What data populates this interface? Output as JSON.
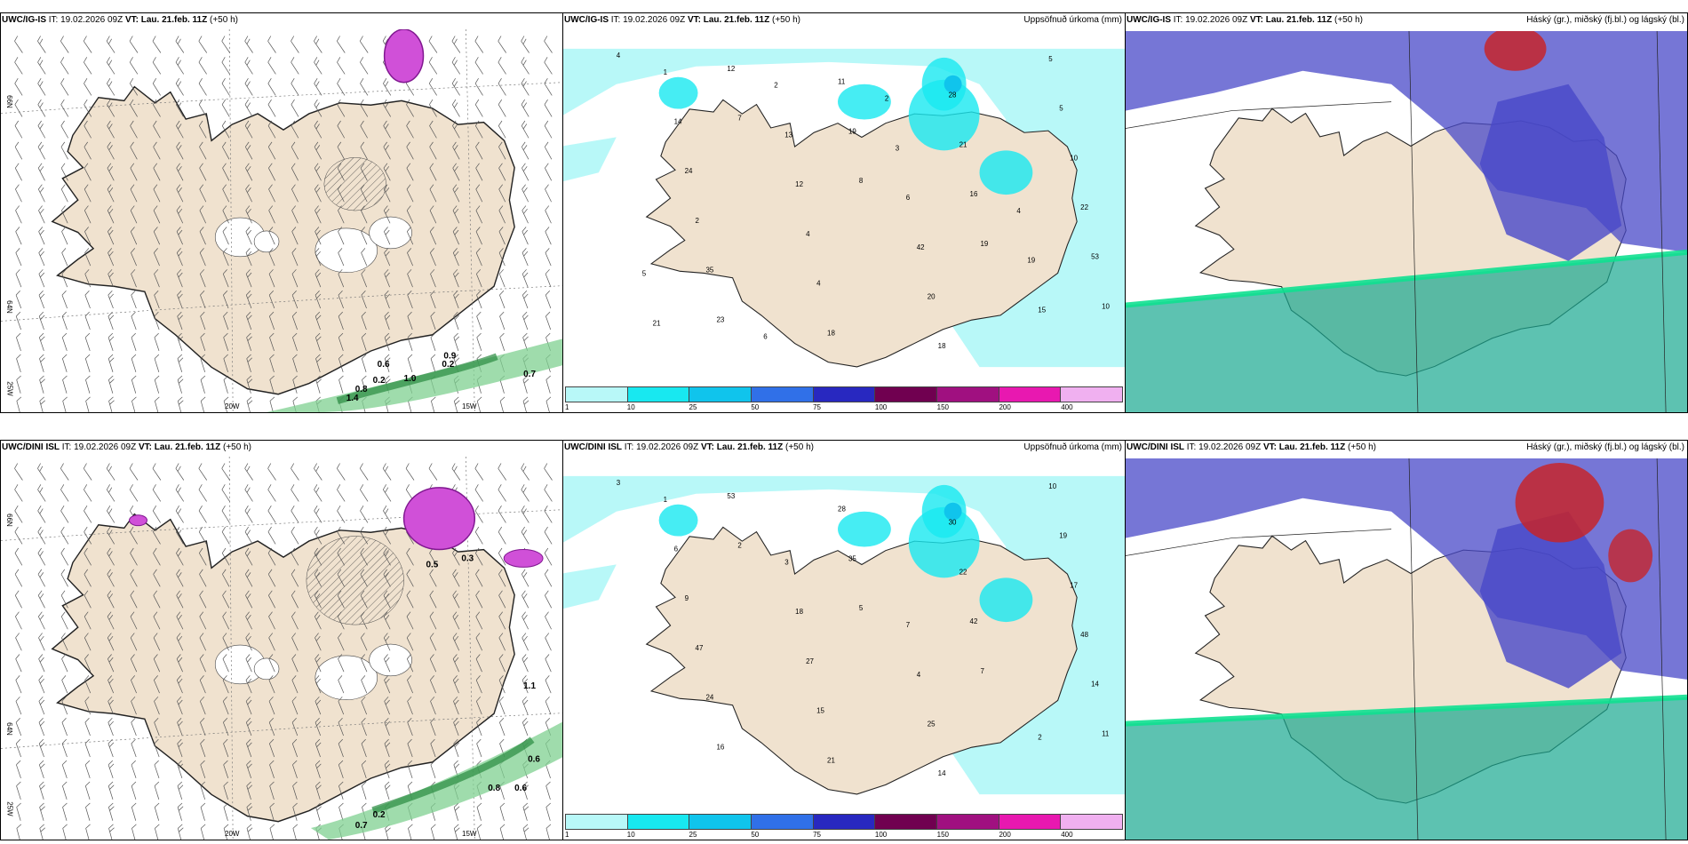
{
  "panels": [
    {
      "id": "p1",
      "title_model": "UWC/IG-IS",
      "title_it_label": "IT:",
      "title_it": "19.02.2026 09Z",
      "title_vt_label": "VT:",
      "title_vt": "Lau. 21.feb. 11Z",
      "title_lead": "(+50 h)",
      "right": ""
    },
    {
      "id": "p2",
      "title_model": "UWC/IG-IS",
      "title_it_label": "IT:",
      "title_it": "19.02.2026 09Z",
      "title_vt_label": "VT:",
      "title_vt": "Lau. 21.feb. 11Z",
      "title_lead": "(+50 h)",
      "right": "Uppsöfnuð úrkoma (mm)"
    },
    {
      "id": "p3",
      "title_model": "UWC/IG-IS",
      "title_it_label": "IT:",
      "title_it": "19.02.2026 09Z",
      "title_vt_label": "VT:",
      "title_vt": "Lau. 21.feb. 11Z",
      "title_lead": "(+50 h)",
      "right": "Háský (gr.), miðský (fj.bl.) og lágský (bl.)"
    },
    {
      "id": "p4",
      "title_model": "UWC/DINI ISL",
      "title_it_label": "IT:",
      "title_it": "19.02.2026 09Z",
      "title_vt_label": "VT:",
      "title_vt": "Lau. 21.feb. 11Z",
      "title_lead": "(+50 h)",
      "right": ""
    },
    {
      "id": "p5",
      "title_model": "UWC/DINI ISL",
      "title_it_label": "IT:",
      "title_it": "19.02.2026 09Z",
      "title_vt_label": "VT:",
      "title_vt": "Lau. 21.feb. 11Z",
      "title_lead": "(+50 h)",
      "right": "Uppsöfnuð úrkoma (mm)"
    },
    {
      "id": "p6",
      "title_model": "UWC/DINI ISL",
      "title_it_label": "IT:",
      "title_it": "19.02.2026 09Z",
      "title_vt_label": "VT:",
      "title_vt": "Lau. 21.feb. 11Z",
      "title_lead": "(+50 h)",
      "right": "Háský (gr.), miðský (fj.bl.) og lágský (bl.)"
    }
  ],
  "axis_labels": {
    "lat66": "66N",
    "lat64": "64N",
    "lon25": "25W",
    "lon20": "20W",
    "lon15": "15W"
  },
  "colorbar": {
    "ticks": [
      "1",
      "10",
      "25",
      "50",
      "75",
      "100",
      "150",
      "200",
      "400"
    ],
    "colors": [
      "#b8f8f8",
      "#18e8f0",
      "#10c4ec",
      "#3070e8",
      "#2828c0",
      "#700050",
      "#a01080",
      "#e818b0",
      "#f0b0f0"
    ]
  },
  "precip_top": [
    "4",
    "7",
    "8",
    "19",
    "10",
    "12",
    "19",
    "16",
    "53",
    "23",
    "11",
    "21",
    "22",
    "35",
    "18",
    "28",
    "10",
    "2",
    "4",
    "18",
    "5",
    "24",
    "4",
    "20",
    "5",
    "14",
    "12",
    "42",
    "15",
    "1",
    "13",
    "6",
    "19",
    "21",
    "2",
    "3",
    "4",
    "5",
    "6",
    "2"
  ],
  "precip_bot": [
    "3",
    "2",
    "5",
    "7",
    "11",
    "53",
    "35",
    "42",
    "14",
    "16",
    "28",
    "22",
    "48",
    "24",
    "21",
    "30",
    "17",
    "47",
    "15",
    "14",
    "19",
    "9",
    "27",
    "25",
    "10",
    "6",
    "18",
    "4",
    "2",
    "1",
    "3",
    "7"
  ],
  "wind_vals_top": [
    "0.6",
    "0.9",
    "0.2",
    "0.2",
    "1.0",
    "0.7",
    "0.8",
    "1.4"
  ],
  "wind_vals_bot": [
    "0.8",
    "0.6",
    "0.6",
    "0.2",
    "0.7",
    "1.1",
    "0.5",
    "0.3"
  ],
  "map_colors": {
    "land": "#f0e2cf",
    "sea": "#ffffff",
    "precip_sea": "#b8f8f8",
    "cloud_high": "#cc2020",
    "cloud_mid": "#4848c8",
    "cloud_low": "#18a890"
  }
}
